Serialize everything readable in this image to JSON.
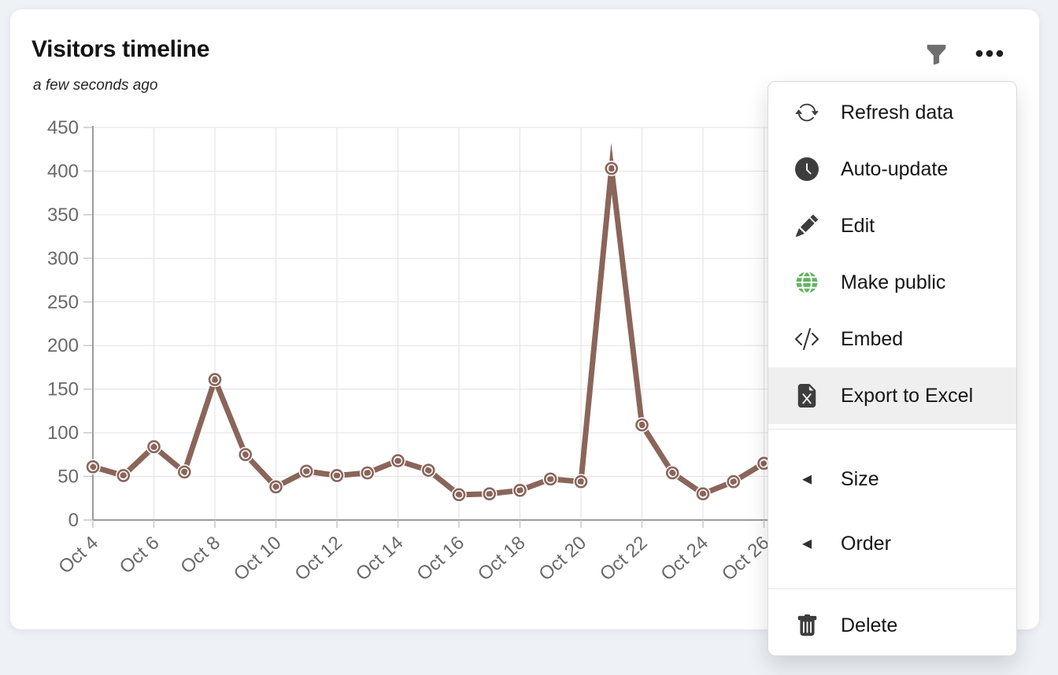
{
  "card": {
    "title": "Visitors timeline",
    "updated_text": "a few seconds ago"
  },
  "toolbar": {
    "filter_icon": "funnel-icon",
    "menu_icon": "ellipsis-icon"
  },
  "colors": {
    "page_bg": "#eef1f6",
    "card_bg": "#ffffff",
    "line": "#8a655a",
    "grid": "#e2e2e2",
    "axis": "#9c9c9c",
    "tick_text": "#696969",
    "menu_highlight": "#efefef",
    "globe_green": "#5fb55f"
  },
  "menu": {
    "submenu_arrow_glyph": "◂",
    "sections": [
      {
        "items": [
          {
            "label": "Refresh data",
            "icon": "refresh-icon"
          },
          {
            "label": "Auto-update",
            "icon": "clock-icon"
          },
          {
            "label": "Edit",
            "icon": "pencil-icon"
          },
          {
            "label": "Make public",
            "icon": "globe-icon",
            "icon_color": "#5fb55f"
          },
          {
            "label": "Embed",
            "icon": "code-icon"
          },
          {
            "label": "Export to Excel",
            "icon": "excel-file-icon",
            "highlighted": true
          }
        ]
      },
      {
        "items": [
          {
            "label": "Size",
            "icon": "submenu-left-arrow-icon"
          },
          {
            "label": "Order",
            "icon": "submenu-left-arrow-icon"
          }
        ]
      },
      {
        "items": [
          {
            "label": "Delete",
            "icon": "trash-icon"
          }
        ]
      }
    ]
  },
  "chart_data": {
    "type": "line",
    "title": "Visitors timeline",
    "x": [
      "Oct 4",
      "Oct 5",
      "Oct 6",
      "Oct 7",
      "Oct 8",
      "Oct 9",
      "Oct 10",
      "Oct 11",
      "Oct 12",
      "Oct 13",
      "Oct 14",
      "Oct 15",
      "Oct 16",
      "Oct 17",
      "Oct 18",
      "Oct 19",
      "Oct 20",
      "Oct 21",
      "Oct 22",
      "Oct 23",
      "Oct 24",
      "Oct 25",
      "Oct 26"
    ],
    "values": [
      61,
      51,
      84,
      55,
      161,
      75,
      38,
      56,
      51,
      54,
      68,
      57,
      29,
      30,
      34,
      47,
      44,
      403,
      109,
      54,
      30,
      44,
      65
    ],
    "x_tick_labels": [
      "Oct 4",
      "Oct 6",
      "Oct 8",
      "Oct 10",
      "Oct 12",
      "Oct 14",
      "Oct 16",
      "Oct 18",
      "Oct 20",
      "Oct 22",
      "Oct 24",
      "Oct 26"
    ],
    "y_ticks": [
      0,
      50,
      100,
      150,
      200,
      250,
      300,
      350,
      400,
      450
    ],
    "ylim": [
      0,
      450
    ],
    "xlabel": "",
    "ylabel": "",
    "grid": true,
    "legend": false,
    "line_color": "#8a655a",
    "marker": "open-circle"
  }
}
